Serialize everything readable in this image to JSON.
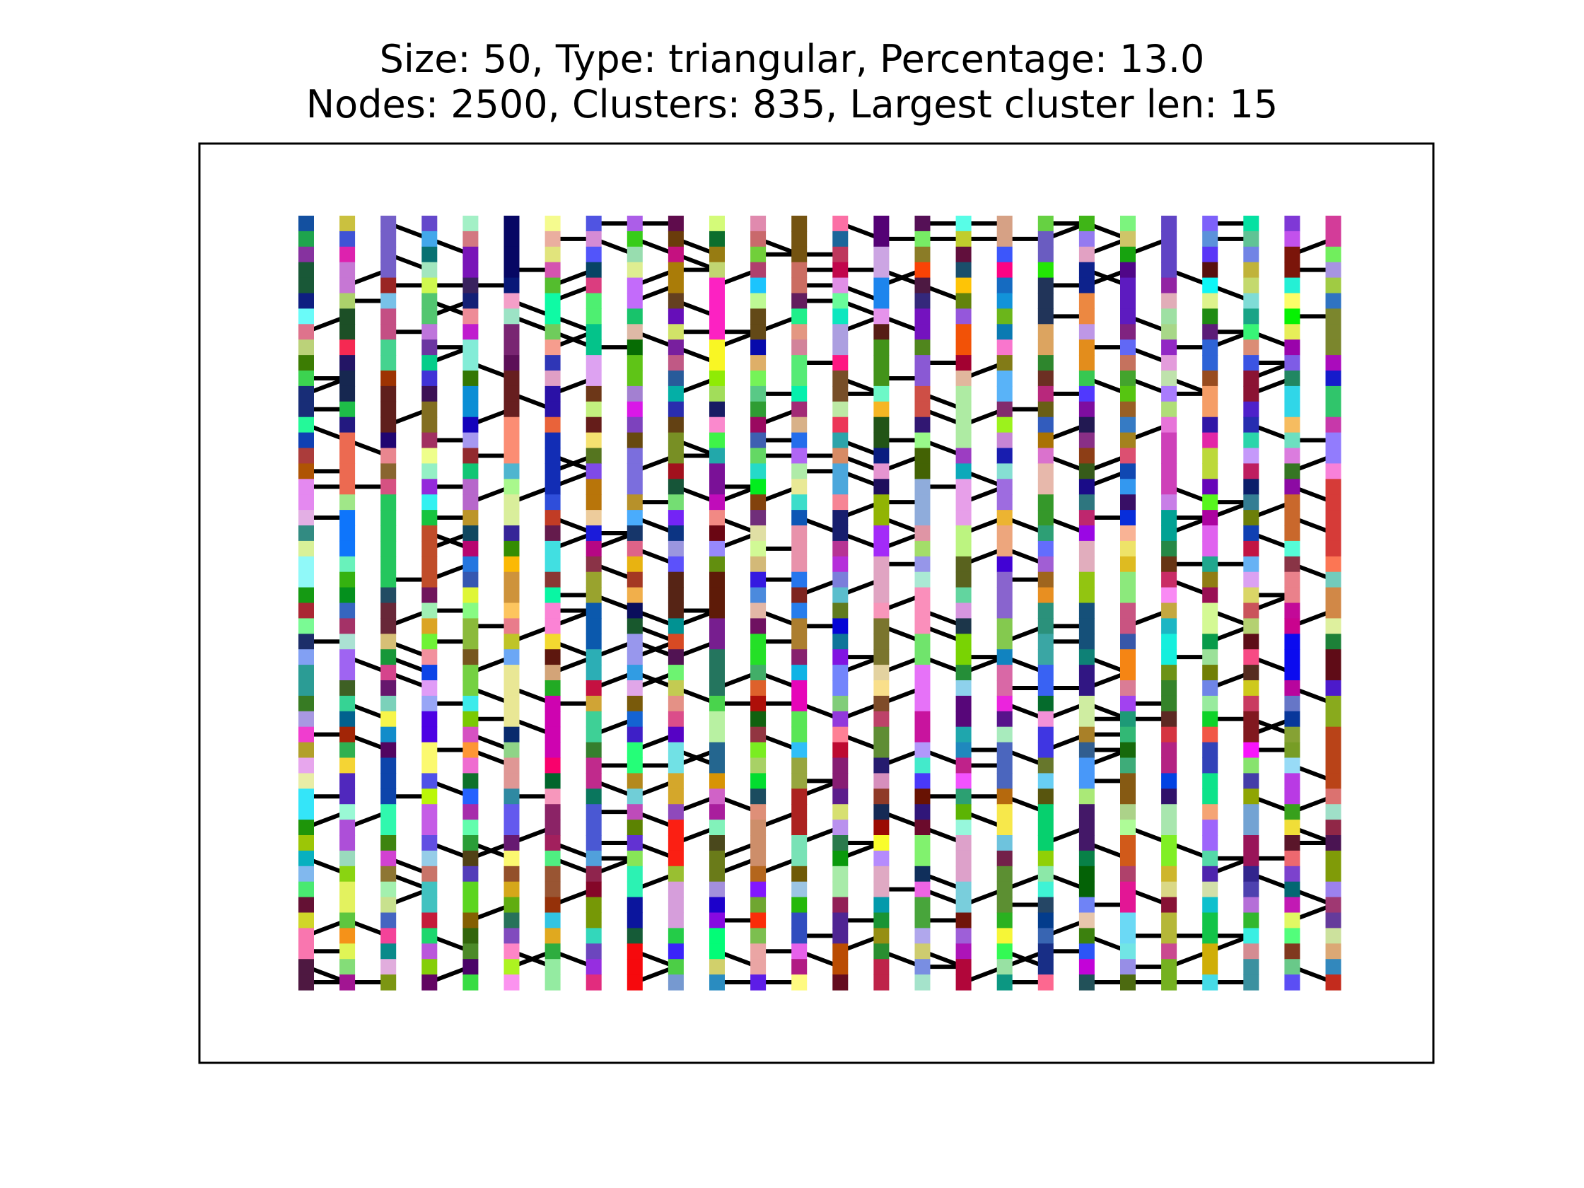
{
  "title": {
    "line1": "Size: 50, Type: triangular, Percentage: 13.0",
    "line2": "Nodes: 2500, Clusters: 835, Largest cluster len: 15"
  },
  "chart_data": {
    "type": "percolation-lattice",
    "lattice_size": 50,
    "lattice_type": "triangular",
    "percentage": 13.0,
    "nodes": 2500,
    "clusters": 835,
    "largest_cluster_len": 15,
    "visible_columns": 26,
    "visible_rows": 50,
    "edge_color": "#000000",
    "axes_visible": false,
    "frame_color": "#000000"
  }
}
